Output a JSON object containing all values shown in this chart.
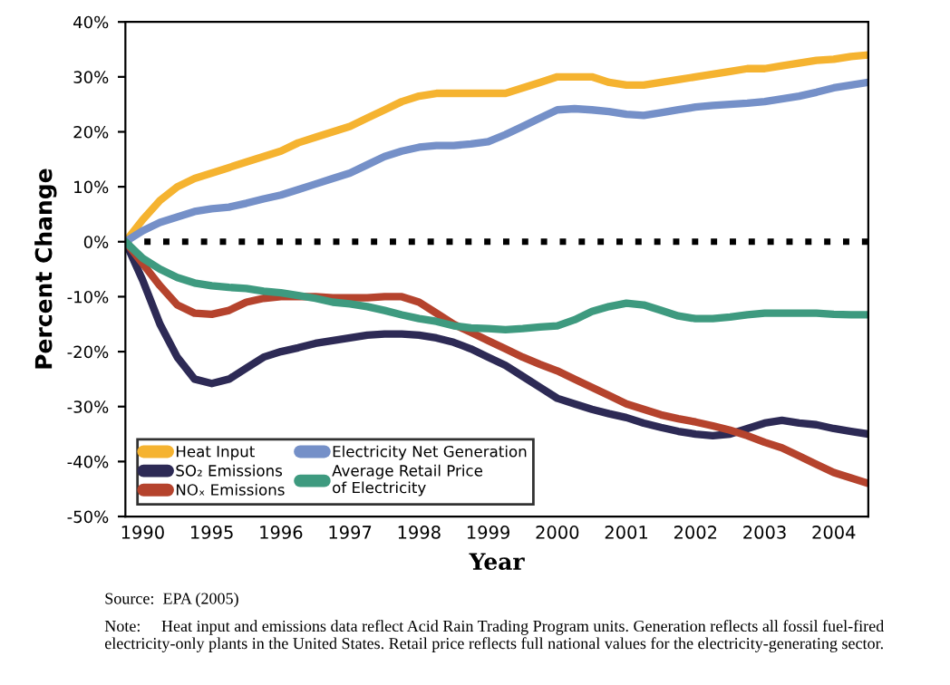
{
  "chart_data": {
    "type": "line",
    "xlabel": "Year",
    "ylabel": "Percent Change",
    "categories": [
      null,
      "1990",
      null,
      null,
      null,
      "1995",
      null,
      null,
      null,
      "1996",
      null,
      null,
      null,
      "1997",
      null,
      null,
      null,
      "1998",
      null,
      null,
      null,
      "1999",
      null,
      null,
      null,
      "2000",
      null,
      null,
      null,
      "2001",
      null,
      null,
      null,
      "2002",
      null,
      null,
      null,
      "2003",
      null,
      null,
      null,
      "2004",
      null,
      null
    ],
    "series": [
      {
        "name": "Heat Input",
        "color": "#f5b330",
        "values": [
          0,
          4,
          7.5,
          10,
          11.5,
          12.5,
          13.5,
          14.5,
          15.5,
          16.5,
          18,
          19,
          20,
          21,
          22.5,
          24,
          25.5,
          26.5,
          27,
          27,
          27,
          27,
          27,
          28,
          29,
          30,
          30,
          30,
          29,
          28.5,
          28.5,
          29,
          29.5,
          30,
          30.5,
          31,
          31.5,
          31.5,
          32,
          32.5,
          33,
          33.2,
          33.7,
          34
        ]
      },
      {
        "name": "SO₂ Emissions",
        "color": "#2d2a55",
        "values": [
          0,
          -7,
          -15,
          -21,
          -25,
          -25.8,
          -25,
          -23,
          -21,
          -20,
          -19.3,
          -18.5,
          -18,
          -17.5,
          -17,
          -16.8,
          -16.8,
          -17,
          -17.5,
          -18.3,
          -19.5,
          -21,
          -22.5,
          -24.5,
          -26.5,
          -28.5,
          -29.5,
          -30.5,
          -31.3,
          -32,
          -33,
          -33.8,
          -34.5,
          -35,
          -35.3,
          -35,
          -34,
          -33,
          -32.5,
          -33,
          -33.3,
          -34,
          -34.5,
          -35
        ]
      },
      {
        "name": "NOₓ Emissions",
        "color": "#b5432d",
        "values": [
          0,
          -4,
          -8,
          -11.5,
          -13,
          -13.2,
          -12.5,
          -11,
          -10.3,
          -10,
          -10,
          -10,
          -10.2,
          -10.2,
          -10.2,
          -10,
          -10,
          -11,
          -13,
          -15,
          -16.5,
          -18,
          -19.5,
          -21,
          -22.3,
          -23.5,
          -25,
          -26.5,
          -28,
          -29.5,
          -30.5,
          -31.5,
          -32.2,
          -32.8,
          -33.5,
          -34.3,
          -35.3,
          -36.5,
          -37.5,
          -39,
          -40.5,
          -42,
          -43,
          -44
        ]
      },
      {
        "name": "Electricity Net Generation",
        "color": "#7590c8",
        "values": [
          0,
          2,
          3.5,
          4.5,
          5.5,
          6,
          6.3,
          7,
          7.8,
          8.5,
          9.5,
          10.5,
          11.5,
          12.5,
          14,
          15.5,
          16.5,
          17.2,
          17.5,
          17.5,
          17.8,
          18.2,
          19.5,
          21,
          22.5,
          24,
          24.2,
          24,
          23.7,
          23.2,
          23,
          23.5,
          24,
          24.5,
          24.8,
          25,
          25.2,
          25.5,
          26,
          26.5,
          27.2,
          28,
          28.5,
          29
        ]
      },
      {
        "name": "Average Retail Price\nof Electricity",
        "color": "#3e9a7f",
        "values": [
          0,
          -3,
          -5,
          -6.5,
          -7.5,
          -8,
          -8.3,
          -8.5,
          -9,
          -9.3,
          -9.8,
          -10.3,
          -11,
          -11.3,
          -11.8,
          -12.5,
          -13.3,
          -14,
          -14.5,
          -15.3,
          -15.7,
          -15.8,
          -16,
          -15.8,
          -15.5,
          -15.3,
          -14.2,
          -12.7,
          -11.8,
          -11.2,
          -11.5,
          -12.5,
          -13.5,
          -14,
          -14,
          -13.7,
          -13.3,
          -13,
          -13,
          -13,
          -13,
          -13.2,
          -13.3,
          -13.3
        ]
      }
    ],
    "ylim": [
      -50,
      40
    ],
    "yticks": [
      {
        "value": -50,
        "label": "-50%"
      },
      {
        "value": -40,
        "label": "-40%"
      },
      {
        "value": -30,
        "label": "-30%"
      },
      {
        "value": -20,
        "label": "-20%"
      },
      {
        "value": -10,
        "label": "-10%"
      },
      {
        "value": 0,
        "label": "0%"
      },
      {
        "value": 10,
        "label": "10%"
      },
      {
        "value": 20,
        "label": "20%"
      },
      {
        "value": 30,
        "label": "30%"
      },
      {
        "value": 40,
        "label": "40%"
      }
    ],
    "ref_lines": [
      {
        "axis": "y",
        "value": 0,
        "color": "#000000",
        "line_style": "dotted"
      }
    ],
    "legend": "bottom left",
    "grid": false,
    "marker": "none",
    "line_style": "solid",
    "annotations": [
      "Source:  EPA (2005)",
      "Note:     Heat input and emissions data reflect Acid Rain Trading Program units. Generation reflects all fossil fuel-fired electricity-only plants in the United States. Retail price reflects full national values for the electricity-generating sector."
    ]
  }
}
